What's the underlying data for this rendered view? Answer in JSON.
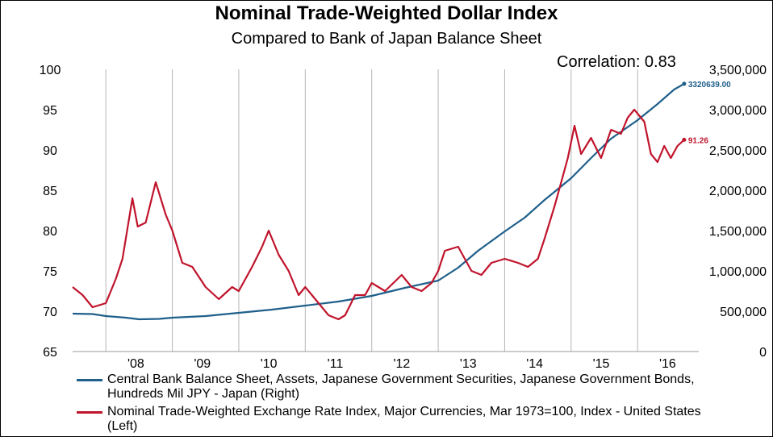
{
  "header": {
    "title": "Nominal Trade-Weighted Dollar Index",
    "subtitle": "Compared to Bank of Japan Balance Sheet",
    "correlation": "Correlation: 0.83"
  },
  "colors": {
    "boj": "#1f5f8b",
    "dollar": "#c0142c"
  },
  "chart_data": {
    "type": "line",
    "x_tick_labels": [
      "'08",
      "'09",
      "'10",
      "'11",
      "'12",
      "'13",
      "'14",
      "'15",
      "'16"
    ],
    "left_axis": {
      "ylim": [
        65,
        100
      ],
      "ticks": [
        "65",
        "70",
        "75",
        "80",
        "85",
        "90",
        "95",
        "100"
      ]
    },
    "right_axis": {
      "ylim": [
        0,
        3500000
      ],
      "ticks": [
        "0",
        "500,000",
        "1,000,000",
        "1,500,000",
        "2,000,000",
        "2,500,000",
        "3,000,000",
        "3,500,000"
      ]
    },
    "grid": "vertical",
    "legend_position": "bottom",
    "series": [
      {
        "name": "Central Bank Balance Sheet, Assets, Japanese Government Securities, Japanese Government Bonds, Hundreds Mil JPY - Japan  (Right)",
        "axis": "right",
        "end_label": "3320639.00",
        "points": [
          [
            2007.5,
            470000
          ],
          [
            2007.8,
            465000
          ],
          [
            2008.0,
            440000
          ],
          [
            2008.3,
            420000
          ],
          [
            2008.5,
            400000
          ],
          [
            2008.8,
            405000
          ],
          [
            2009.0,
            420000
          ],
          [
            2009.5,
            440000
          ],
          [
            2010.0,
            480000
          ],
          [
            2010.5,
            520000
          ],
          [
            2011.0,
            570000
          ],
          [
            2011.5,
            620000
          ],
          [
            2012.0,
            690000
          ],
          [
            2012.5,
            790000
          ],
          [
            2013.0,
            880000
          ],
          [
            2013.3,
            1040000
          ],
          [
            2013.6,
            1250000
          ],
          [
            2014.0,
            1490000
          ],
          [
            2014.3,
            1660000
          ],
          [
            2014.6,
            1880000
          ],
          [
            2015.0,
            2150000
          ],
          [
            2015.3,
            2400000
          ],
          [
            2015.6,
            2640000
          ],
          [
            2016.0,
            2870000
          ],
          [
            2016.3,
            3070000
          ],
          [
            2016.55,
            3250000
          ],
          [
            2016.7,
            3320639
          ]
        ]
      },
      {
        "name": "Nominal Trade-Weighted Exchange Rate Index, Major Currencies, Mar 1973=100, Index - United States  (Left)",
        "axis": "left",
        "end_label": "91.26",
        "points": [
          [
            2007.5,
            73.0
          ],
          [
            2007.65,
            72.0
          ],
          [
            2007.8,
            70.5
          ],
          [
            2008.0,
            71.0
          ],
          [
            2008.15,
            74.0
          ],
          [
            2008.25,
            76.5
          ],
          [
            2008.4,
            84.0
          ],
          [
            2008.48,
            80.5
          ],
          [
            2008.6,
            81.0
          ],
          [
            2008.75,
            86.0
          ],
          [
            2008.9,
            82.0
          ],
          [
            2009.0,
            80.0
          ],
          [
            2009.15,
            76.0
          ],
          [
            2009.3,
            75.5
          ],
          [
            2009.5,
            73.0
          ],
          [
            2009.7,
            71.5
          ],
          [
            2009.9,
            73.0
          ],
          [
            2010.0,
            72.5
          ],
          [
            2010.2,
            75.5
          ],
          [
            2010.35,
            78.0
          ],
          [
            2010.45,
            80.0
          ],
          [
            2010.6,
            77.0
          ],
          [
            2010.75,
            75.0
          ],
          [
            2010.9,
            72.0
          ],
          [
            2011.0,
            73.0
          ],
          [
            2011.2,
            71.0
          ],
          [
            2011.35,
            69.5
          ],
          [
            2011.5,
            69.0
          ],
          [
            2011.6,
            69.5
          ],
          [
            2011.75,
            72.0
          ],
          [
            2011.9,
            72.0
          ],
          [
            2012.0,
            73.5
          ],
          [
            2012.2,
            72.5
          ],
          [
            2012.45,
            74.5
          ],
          [
            2012.6,
            73.0
          ],
          [
            2012.75,
            72.5
          ],
          [
            2012.9,
            73.5
          ],
          [
            2013.0,
            75.0
          ],
          [
            2013.1,
            77.5
          ],
          [
            2013.3,
            78.0
          ],
          [
            2013.5,
            75.0
          ],
          [
            2013.65,
            74.5
          ],
          [
            2013.8,
            76.0
          ],
          [
            2014.0,
            76.5
          ],
          [
            2014.2,
            76.0
          ],
          [
            2014.35,
            75.5
          ],
          [
            2014.5,
            76.5
          ],
          [
            2014.6,
            79.0
          ],
          [
            2014.75,
            83.0
          ],
          [
            2014.85,
            86.0
          ],
          [
            2014.95,
            89.0
          ],
          [
            2015.05,
            93.0
          ],
          [
            2015.15,
            89.5
          ],
          [
            2015.3,
            91.5
          ],
          [
            2015.45,
            89.0
          ],
          [
            2015.6,
            92.5
          ],
          [
            2015.75,
            92.0
          ],
          [
            2015.85,
            94.0
          ],
          [
            2015.95,
            95.0
          ],
          [
            2016.1,
            93.5
          ],
          [
            2016.2,
            89.5
          ],
          [
            2016.3,
            88.5
          ],
          [
            2016.4,
            90.5
          ],
          [
            2016.5,
            89.0
          ],
          [
            2016.6,
            90.5
          ],
          [
            2016.7,
            91.26
          ]
        ]
      }
    ]
  }
}
